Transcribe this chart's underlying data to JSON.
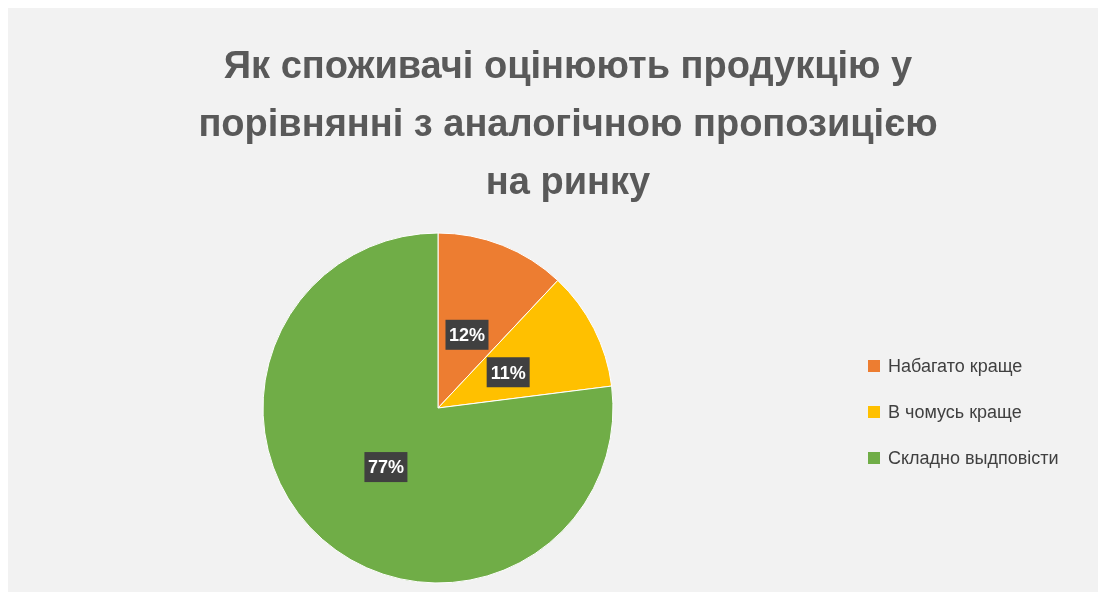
{
  "chart_data": {
    "type": "pie",
    "title": "Як споживачі оцінюють продукцію у порівнянні з аналогічною пропозицією на ринку",
    "categories": [
      "Набагато краще",
      "В чомусь краще",
      "Складно выдповісти"
    ],
    "values": [
      12,
      11,
      77
    ],
    "colors": [
      "#ed7d31",
      "#ffc000",
      "#70ad47"
    ],
    "value_labels": [
      "12%",
      "11%",
      "77%"
    ],
    "legend": "right"
  }
}
